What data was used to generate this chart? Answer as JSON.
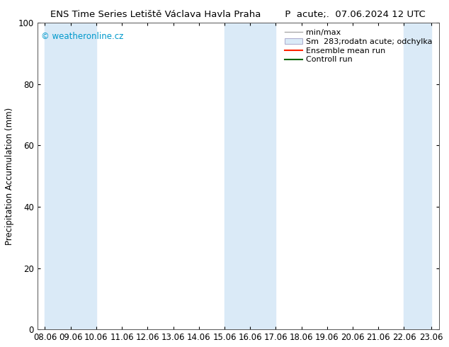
{
  "title_left": "ENS Time Series Letiště Václava Havla Praha",
  "title_right": "P  acute;.  07.06.2024 12 UTC",
  "ylabel": "Precipitation Accumulation (mm)",
  "watermark": "© weatheronline.cz",
  "watermark_color": "#0099cc",
  "ylim": [
    0,
    100
  ],
  "xtick_labels": [
    "08.06",
    "09.06",
    "10.06",
    "11.06",
    "12.06",
    "13.06",
    "14.06",
    "15.06",
    "16.06",
    "17.06",
    "18.06",
    "19.06",
    "20.06",
    "21.06",
    "22.06",
    "23.06"
  ],
  "bg_color": "#ffffff",
  "plot_bg_color": "#ffffff",
  "shaded_bands": [
    {
      "x_start": 0,
      "x_end": 2
    },
    {
      "x_start": 7,
      "x_end": 9
    },
    {
      "x_start": 14,
      "x_end": 15.06
    }
  ],
  "shade_color": "#daeaf7",
  "font_size_title": 9.5,
  "font_size_axis": 8.5,
  "font_size_legend": 8.0,
  "font_size_watermark": 8.5,
  "tick_positions": [
    0,
    1,
    2,
    3,
    4,
    5,
    6,
    7,
    8,
    9,
    10,
    11,
    12,
    13,
    14,
    15.06
  ],
  "xlim": [
    -0.3,
    15.36
  ],
  "yticks": [
    0,
    20,
    40,
    60,
    80,
    100
  ]
}
